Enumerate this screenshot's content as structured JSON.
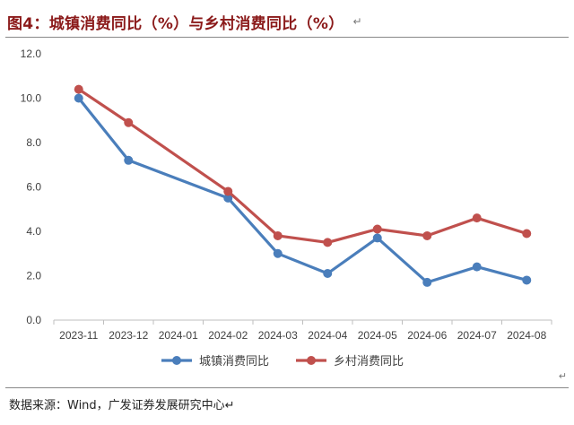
{
  "figure": {
    "title": "图4：城镇消费同比（%）与乡村消费同比（%）",
    "para_mark": "↵",
    "corner_mark": "↵",
    "source": "数据来源：Wind，广发证券发展研究中心↵"
  },
  "chart_data": {
    "type": "line",
    "title": "图4：城镇消费同比（%）与乡村消费同比（%）",
    "xlabel": "",
    "ylabel": "",
    "ylim": [
      0,
      12
    ],
    "yticks": [
      "0.0",
      "2.0",
      "4.0",
      "6.0",
      "8.0",
      "10.0",
      "12.0"
    ],
    "categories": [
      "2023-11",
      "2023-12",
      "2024-01",
      "2024-02",
      "2024-03",
      "2024-04",
      "2024-05",
      "2024-06",
      "2024-07",
      "2024-08"
    ],
    "grid": false,
    "legend_position": "bottom",
    "series": [
      {
        "name": "城镇消费同比",
        "color": "#4a7ebb",
        "values": [
          10.0,
          7.2,
          null,
          5.5,
          3.0,
          2.1,
          3.7,
          1.7,
          2.4,
          1.8
        ]
      },
      {
        "name": "乡村消费同比",
        "color": "#c0504d",
        "values": [
          10.4,
          8.9,
          null,
          5.8,
          3.8,
          3.5,
          4.1,
          3.8,
          4.6,
          3.9
        ]
      }
    ]
  }
}
